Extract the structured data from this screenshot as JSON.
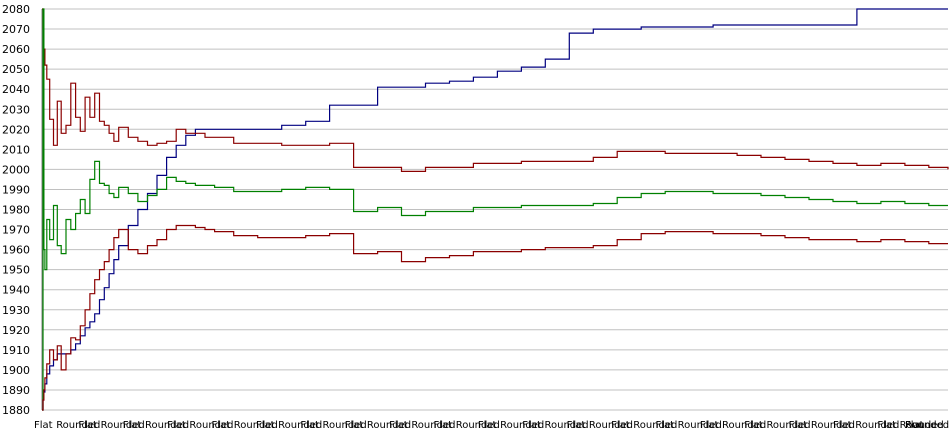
{
  "chart_data": {
    "type": "line",
    "title": "",
    "xlabel": "",
    "ylabel": "",
    "ylim": [
      1880,
      2080
    ],
    "yticks": [
      1880,
      1890,
      1900,
      1910,
      1920,
      1930,
      1940,
      1950,
      1960,
      1970,
      1980,
      1990,
      2000,
      2010,
      2020,
      2030,
      2040,
      2050,
      2060,
      2070,
      2080
    ],
    "x_tick_labels": [
      "Flat",
      "Rounded",
      "Flat",
      "Rounded",
      "Flat",
      "Rounded",
      "Flat",
      "Rounded",
      "Flat",
      "Rounded",
      "Flat",
      "Rounded",
      "Flat",
      "Rounded",
      "Flat",
      "Rounded",
      "Flat",
      "Rounded",
      "Flat",
      "Rounded",
      "Flat",
      "Rounded",
      "Flat",
      "Rounded",
      "Flat",
      "Rounded",
      "Flat",
      "Rounded",
      "Flat",
      "Rounded",
      "Flat",
      "Rounded",
      "Flat",
      "Rounded",
      "Flat",
      "Rounded",
      "Flat",
      "Rounded",
      "Flat",
      "Rounded",
      "Flat",
      "Rounded"
    ],
    "grid": true,
    "legend": "none",
    "x": [
      0,
      1,
      2,
      3,
      5,
      8,
      12,
      16,
      20,
      25,
      30,
      35,
      40,
      45,
      50,
      55,
      60,
      65,
      70,
      75,
      80,
      90,
      100,
      110,
      120,
      130,
      140,
      150,
      160,
      170,
      180,
      200,
      225,
      250,
      275,
      300,
      325,
      350,
      375,
      400,
      425,
      450,
      475,
      500,
      525,
      550,
      575,
      600,
      625,
      650,
      675,
      700,
      725,
      750,
      775,
      800,
      825,
      850,
      875,
      900,
      925,
      945
    ],
    "series": [
      {
        "color": "#000080",
        "values": [
          1880,
          1885,
          1889,
          1893,
          1898,
          1902,
          1905,
          1908,
          1908,
          1908,
          1910,
          1913,
          1917,
          1921,
          1924,
          1928,
          1935,
          1941,
          1948,
          1955,
          1962,
          1972,
          1980,
          1988,
          1997,
          2006,
          2012,
          2017,
          2020,
          2020,
          2020,
          2020,
          2020,
          2022,
          2024,
          2032,
          2032,
          2041,
          2041,
          2043,
          2044,
          2046,
          2049,
          2051,
          2055,
          2068,
          2070,
          2070,
          2071,
          2071,
          2071,
          2072,
          2072,
          2072,
          2072,
          2072,
          2072,
          2080,
          2080,
          2080,
          2080,
          2080
        ]
      },
      {
        "color": "#8b0000",
        "values": [
          2080,
          2070,
          2060,
          2052,
          2045,
          2025,
          2012,
          2034,
          2018,
          2022,
          2043,
          2026,
          2019,
          2036,
          2026,
          2038,
          2024,
          2022,
          2018,
          2014,
          2021,
          2016,
          2014,
          2012,
          2013,
          2014,
          2020,
          2018,
          2018,
          2016,
          2016,
          2013,
          2013,
          2012,
          2012,
          2013,
          2001,
          2001,
          1999,
          2001,
          2001,
          2003,
          2003,
          2004,
          2004,
          2004,
          2006,
          2009,
          2009,
          2008,
          2008,
          2008,
          2007,
          2006,
          2005,
          2004,
          2003,
          2002,
          2003,
          2002,
          2001,
          2000
        ]
      },
      {
        "color": "#008000",
        "values": [
          1880,
          2080,
          1960,
          1950,
          1975,
          1965,
          1982,
          1962,
          1958,
          1975,
          1970,
          1978,
          1985,
          1978,
          1995,
          2004,
          1993,
          1992,
          1988,
          1986,
          1991,
          1988,
          1984,
          1987,
          1990,
          1996,
          1994,
          1993,
          1992,
          1992,
          1991,
          1989,
          1989,
          1990,
          1991,
          1990,
          1979,
          1981,
          1977,
          1979,
          1979,
          1981,
          1981,
          1982,
          1982,
          1982,
          1983,
          1986,
          1988,
          1989,
          1989,
          1988,
          1988,
          1987,
          1986,
          1985,
          1984,
          1983,
          1984,
          1983,
          1982,
          1982
        ]
      },
      {
        "color": "#8b0000",
        "values": [
          1880,
          1885,
          1890,
          1896,
          1903,
          1910,
          1905,
          1912,
          1900,
          1908,
          1916,
          1915,
          1922,
          1930,
          1938,
          1945,
          1950,
          1954,
          1960,
          1966,
          1970,
          1960,
          1958,
          1962,
          1965,
          1970,
          1972,
          1972,
          1971,
          1970,
          1969,
          1967,
          1966,
          1966,
          1967,
          1968,
          1958,
          1959,
          1954,
          1956,
          1957,
          1959,
          1959,
          1960,
          1961,
          1961,
          1962,
          1965,
          1968,
          1969,
          1969,
          1968,
          1968,
          1967,
          1966,
          1965,
          1965,
          1964,
          1965,
          1964,
          1963,
          1963
        ]
      }
    ]
  }
}
